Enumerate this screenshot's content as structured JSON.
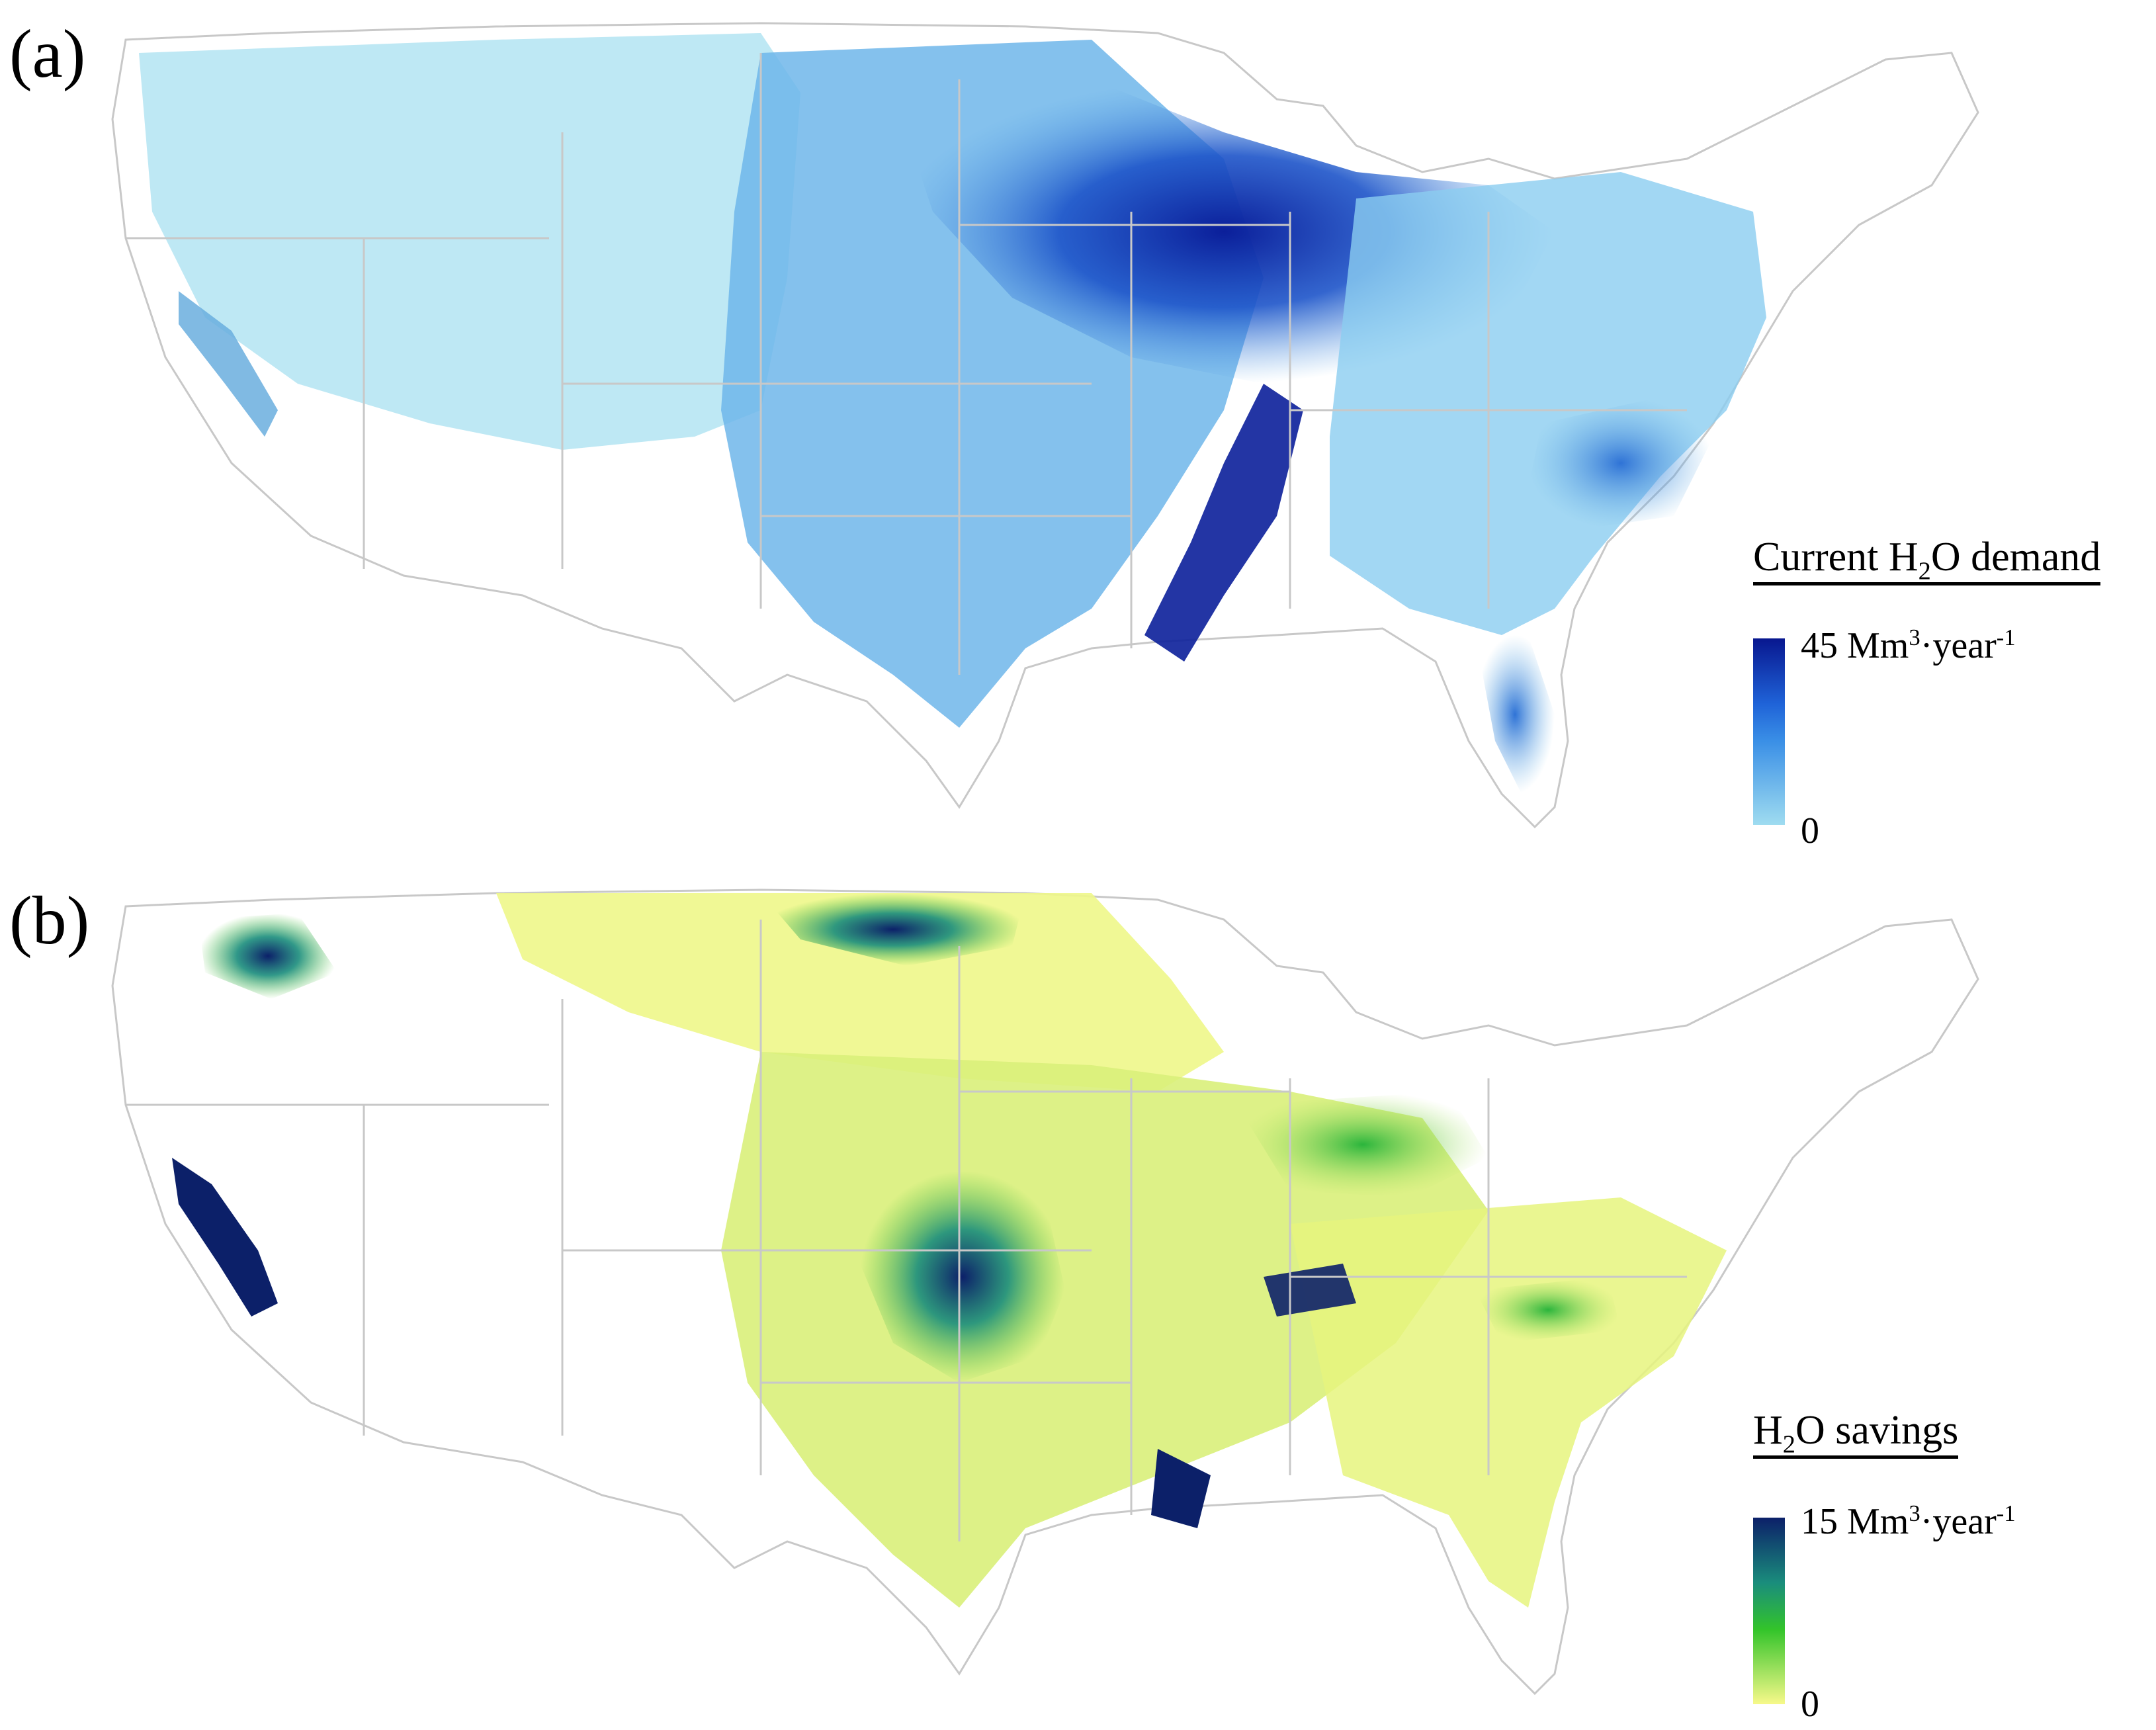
{
  "panels": [
    {
      "label": "(a)",
      "legend": {
        "title_prefix": "Current H",
        "title_sub": "2",
        "title_suffix": "O demand",
        "max_prefix": "45 Mm",
        "max_sup": "3",
        "max_mid": "·year",
        "max_sup2": "-1",
        "min_label": "0",
        "colors": [
          "#08178f",
          "#1f63d8",
          "#3a8fe6",
          "#9fdcf0"
        ]
      }
    },
    {
      "label": "(b)",
      "legend": {
        "title_prefix": "H",
        "title_sub": "2",
        "title_suffix": "O savings",
        "max_prefix": "15 Mm",
        "max_sup": "3",
        "max_mid": "·year",
        "max_sup2": "-1",
        "min_label": "0",
        "colors": [
          "#0c2069",
          "#1a8d7c",
          "#33c42a",
          "#f7f98a"
        ]
      }
    }
  ],
  "map_style": {
    "boundary_color": "#c8c8c8",
    "background": "#ffffff"
  }
}
